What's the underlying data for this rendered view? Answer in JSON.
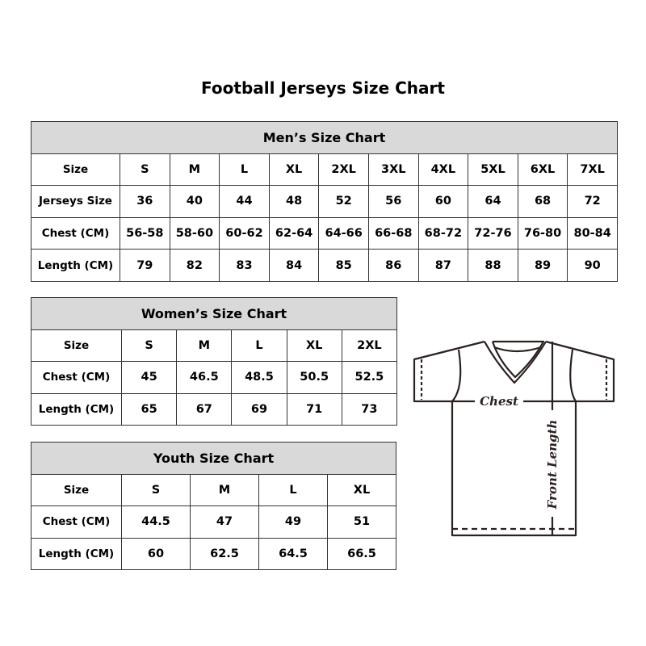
{
  "title": "Football Jerseys Size Chart",
  "men": {
    "caption": "Men’s Size Chart",
    "rows": [
      [
        "Size",
        "S",
        "M",
        "L",
        "XL",
        "2XL",
        "3XL",
        "4XL",
        "5XL",
        "6XL",
        "7XL"
      ],
      [
        "Jerseys Size",
        "36",
        "40",
        "44",
        "48",
        "52",
        "56",
        "60",
        "64",
        "68",
        "72"
      ],
      [
        "Chest (CM)",
        "56-58",
        "58-60",
        "60-62",
        "62-64",
        "64-66",
        "66-68",
        "68-72",
        "72-76",
        "76-80",
        "80-84"
      ],
      [
        "Length (CM)",
        "79",
        "82",
        "83",
        "84",
        "85",
        "86",
        "87",
        "88",
        "89",
        "90"
      ]
    ]
  },
  "women": {
    "caption": "Women’s Size Chart",
    "rows": [
      [
        "Size",
        "S",
        "M",
        "L",
        "XL",
        "2XL"
      ],
      [
        "Chest (CM)",
        "45",
        "46.5",
        "48.5",
        "50.5",
        "52.5"
      ],
      [
        "Length (CM)",
        "65",
        "67",
        "69",
        "71",
        "73"
      ]
    ]
  },
  "youth": {
    "caption": "Youth Size Chart",
    "rows": [
      [
        "Size",
        "S",
        "M",
        "L",
        "XL"
      ],
      [
        "Chest (CM)",
        "44.5",
        "47",
        "49",
        "51"
      ],
      [
        "Length (CM)",
        "60",
        "62.5",
        "64.5",
        "66.5"
      ]
    ]
  },
  "diagram": {
    "chest_label": "Chest",
    "length_label": "Front Length"
  },
  "colors": {
    "header_bg": "#d9d9d9",
    "line": "#2b2220"
  }
}
